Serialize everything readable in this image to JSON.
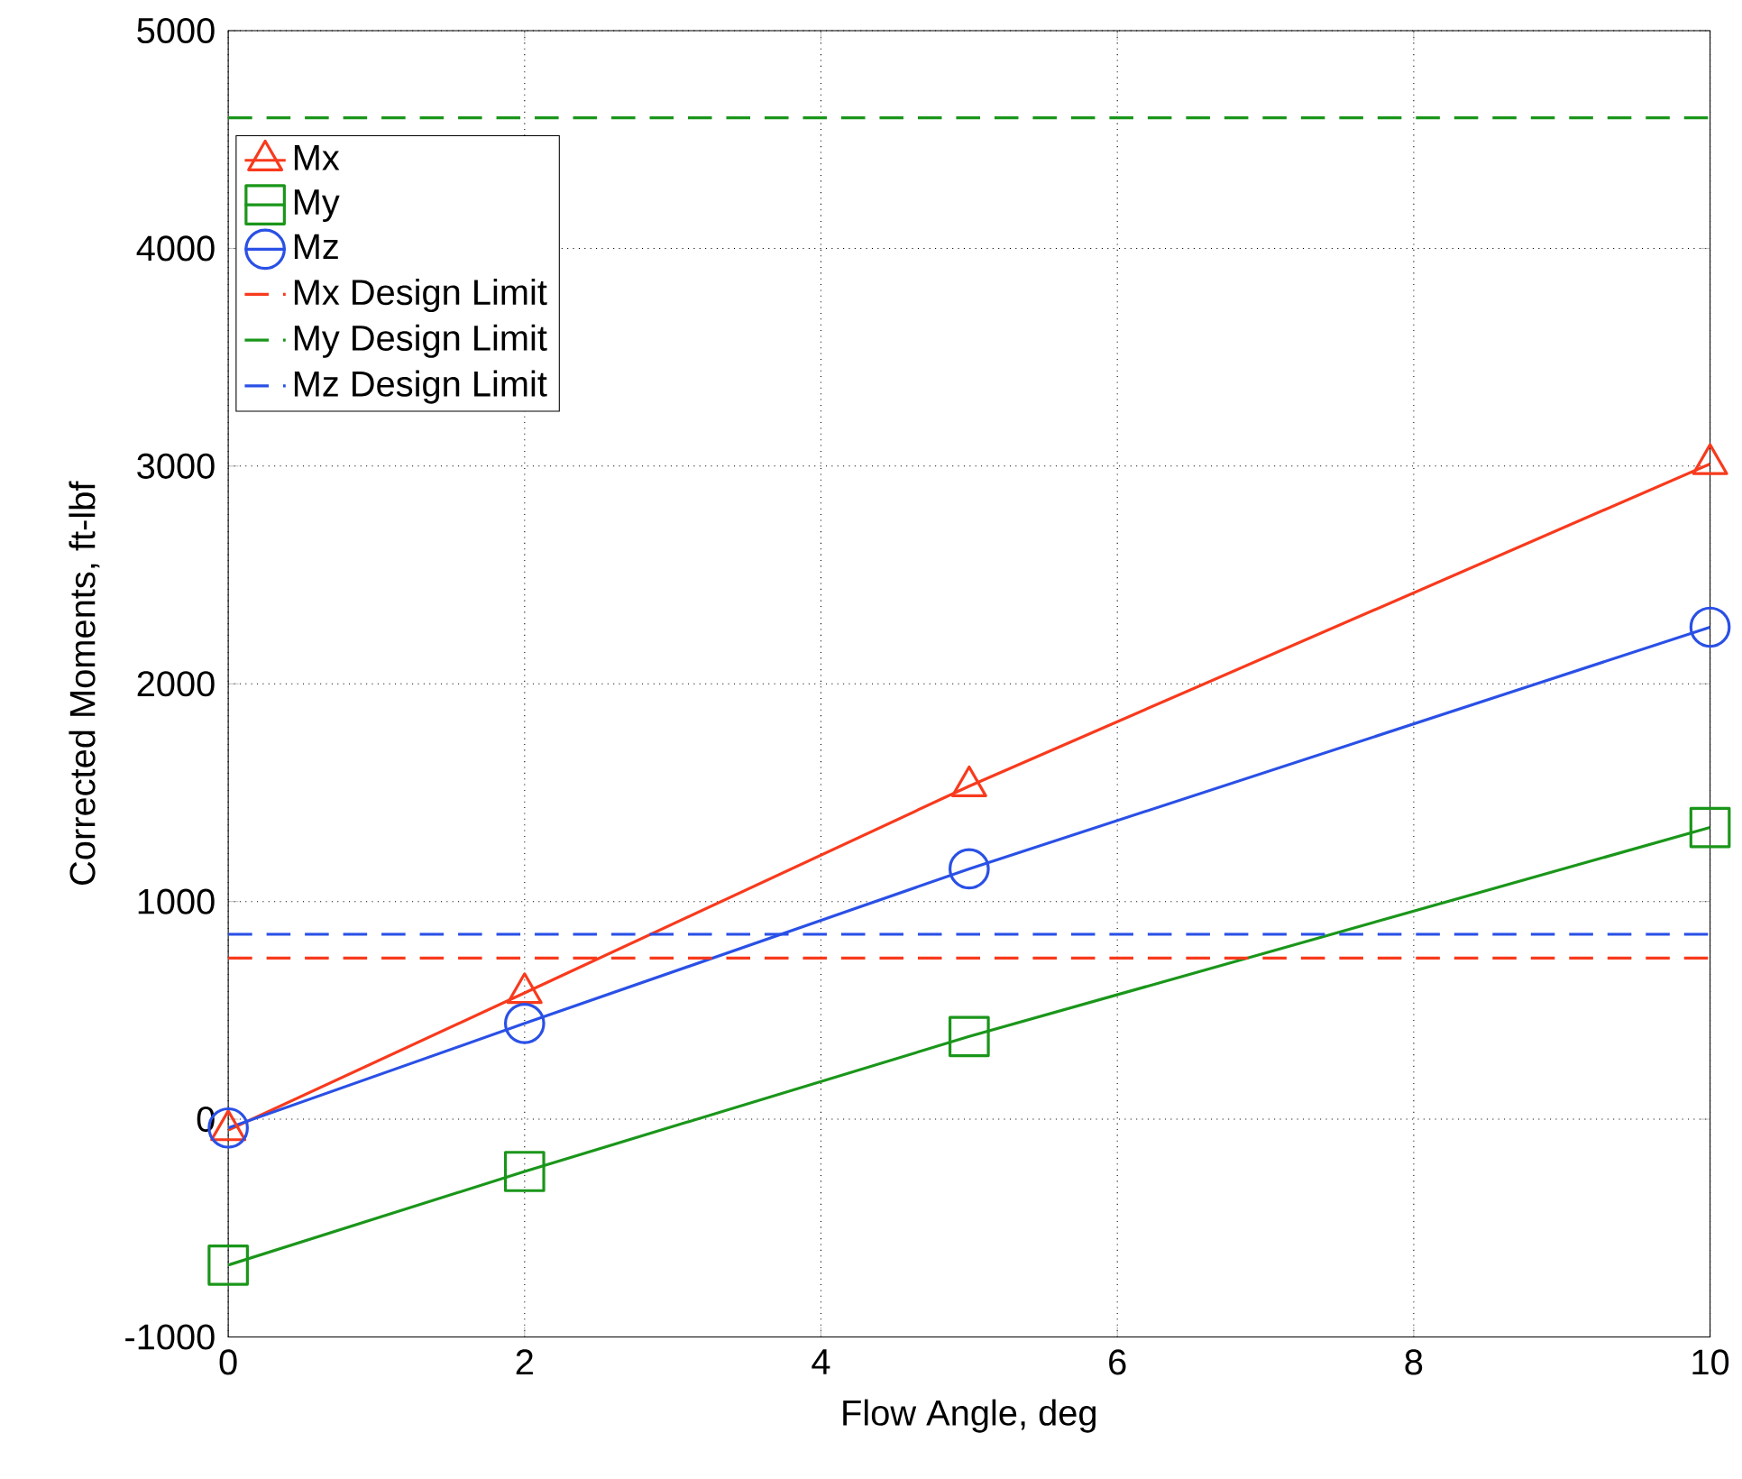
{
  "chart_data": {
    "type": "line",
    "xlabel": "Flow Angle, deg",
    "ylabel": "Corrected Moments, ft-lbf",
    "x": [
      0,
      2,
      5,
      10
    ],
    "series": [
      {
        "name": "Mx",
        "color": "#f83a1d",
        "marker": "triangle",
        "values": [
          -50,
          580,
          1530,
          3010
        ]
      },
      {
        "name": "My",
        "color": "#1a961a",
        "marker": "square",
        "values": [
          -670,
          -240,
          380,
          1340
        ]
      },
      {
        "name": "Mz",
        "color": "#2a50e6",
        "marker": "circle",
        "values": [
          -40,
          440,
          1150,
          2260
        ]
      }
    ],
    "ref_lines": [
      {
        "axis": "y",
        "value": 740,
        "label": "Mx Design Limit",
        "color": "#f83a1d",
        "line_style": "dashed"
      },
      {
        "axis": "y",
        "value": 4600,
        "label": "My Design Limit",
        "color": "#1a961a",
        "line_style": "dashed"
      },
      {
        "axis": "y",
        "value": 850,
        "label": "Mz Design Limit",
        "color": "#2a50e6",
        "line_style": "dashed"
      }
    ],
    "xlim": [
      0,
      10
    ],
    "ylim": [
      -1000,
      5000
    ],
    "xticks": [
      0,
      2,
      4,
      6,
      8,
      10
    ],
    "yticks": [
      -1000,
      0,
      1000,
      2000,
      3000,
      4000,
      5000
    ],
    "grid": true,
    "legend": "top left",
    "line_style": "solid"
  }
}
